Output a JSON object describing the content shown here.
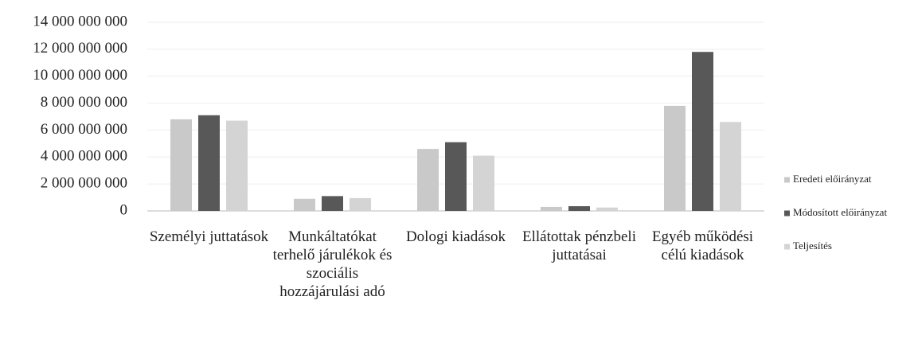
{
  "chart_data": {
    "type": "bar",
    "categories": [
      "Személyi juttatások",
      "Munkáltatókat terhelő járulékok és szociális hozzájárulási adó",
      "Dologi kiadások",
      "Ellátottak pénzbeli juttatásai",
      "Egyéb működési célú kiadások"
    ],
    "series": [
      {
        "name": "Eredeti előirányzat",
        "color": "#c9c9c9",
        "values": [
          6800000000,
          900000000,
          4600000000,
          300000000,
          7800000000
        ]
      },
      {
        "name": "Módosított előirányzat",
        "color": "#585858",
        "values": [
          7100000000,
          1100000000,
          5100000000,
          350000000,
          11800000000
        ]
      },
      {
        "name": "Teljesítés",
        "color": "#d4d4d4",
        "values": [
          6700000000,
          950000000,
          4100000000,
          250000000,
          6600000000
        ]
      }
    ],
    "ylim": [
      0,
      14000000000
    ],
    "yticks": [
      0,
      {
        "value": 2000000000,
        "label": "2 000 000 000"
      },
      {
        "value": 4000000000,
        "label": "4 000 000 000"
      },
      {
        "value": 6000000000,
        "label": "6 000 000 000"
      },
      {
        "value": 8000000000,
        "label": "8 000 000 000"
      },
      {
        "value": 10000000000,
        "label": "10 000 000 000"
      },
      {
        "value": 12000000000,
        "label": "12 000 000 000"
      },
      {
        "value": 14000000000,
        "label": "14 000 000 000"
      }
    ],
    "grid": true,
    "legend": "right"
  }
}
